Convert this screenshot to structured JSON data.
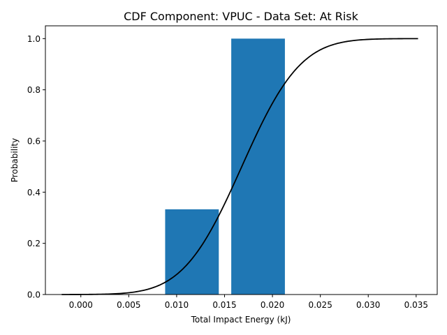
{
  "chart_data": {
    "type": "bar",
    "title": "CDF Component: VPUC - Data Set: At Risk",
    "xlabel": "Total Impact Energy (kJ)",
    "ylabel": "Probability",
    "xlim": [
      -0.0037,
      0.0372
    ],
    "ylim": [
      0,
      1.05
    ],
    "xticks": [
      0.0,
      0.005,
      0.01,
      0.015,
      0.02,
      0.025,
      0.03,
      0.035
    ],
    "xtick_labels": [
      "0.000",
      "0.005",
      "0.010",
      "0.015",
      "0.020",
      "0.025",
      "0.030",
      "0.035"
    ],
    "yticks": [
      0.0,
      0.2,
      0.4,
      0.6,
      0.8,
      1.0
    ],
    "ytick_labels": [
      "0.0",
      "0.2",
      "0.4",
      "0.6",
      "0.8",
      "1.0"
    ],
    "bars": [
      {
        "x_start": 0.0088,
        "x_end": 0.0144,
        "value": 0.333
      },
      {
        "x_start": 0.0157,
        "x_end": 0.0213,
        "value": 1.0
      }
    ],
    "curve": {
      "type": "normal-cdf",
      "mean": 0.0168,
      "std": 0.0048,
      "x_min": -0.002,
      "x_max": 0.0352
    },
    "colors": {
      "bar": "#1f77b4",
      "curve": "#000000"
    },
    "grid": false,
    "legend": "none"
  }
}
